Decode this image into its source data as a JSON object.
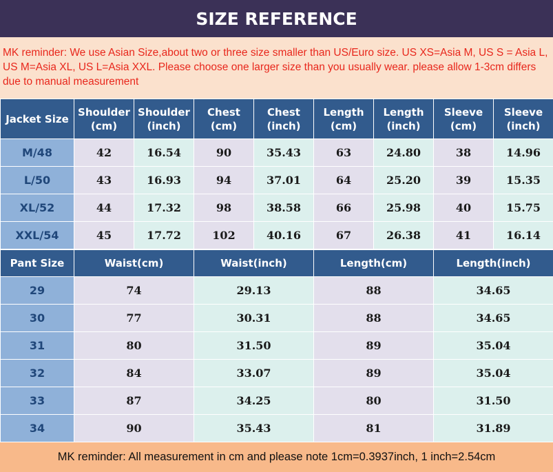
{
  "title": "SIZE REFERENCE",
  "reminder": "MK reminder: We use Asian Size,about two or three size smaller than US/Euro size. US XS=Asia M,  US S = Asia L,  US M=Asia XL,  US L=Asia XXL. Please choose one larger size than you usually wear. please allow 1-3cm differs due to manual measurement",
  "jacket": {
    "headers": [
      "Jacket Size",
      "Shoulder (cm)",
      "Shoulder (inch)",
      "Chest (cm)",
      "Chest (inch)",
      "Length (cm)",
      "Length (inch)",
      "Sleeve (cm)",
      "Sleeve (inch)"
    ],
    "rows": [
      [
        "M/48",
        "42",
        "16.54",
        "90",
        "35.43",
        "63",
        "24.80",
        "38",
        "14.96"
      ],
      [
        "L/50",
        "43",
        "16.93",
        "94",
        "37.01",
        "64",
        "25.20",
        "39",
        "15.35"
      ],
      [
        "XL/52",
        "44",
        "17.32",
        "98",
        "38.58",
        "66",
        "25.98",
        "40",
        "15.75"
      ],
      [
        "XXL/54",
        "45",
        "17.72",
        "102",
        "40.16",
        "67",
        "26.38",
        "41",
        "16.14"
      ]
    ]
  },
  "pant": {
    "headers": [
      "Pant Size",
      "Waist(cm)",
      "Waist(inch)",
      "Length(cm)",
      "Length(inch)"
    ],
    "rows": [
      [
        "29",
        "74",
        "29.13",
        "88",
        "34.65"
      ],
      [
        "30",
        "77",
        "30.31",
        "88",
        "34.65"
      ],
      [
        "31",
        "80",
        "31.50",
        "89",
        "35.04"
      ],
      [
        "32",
        "84",
        "33.07",
        "89",
        "35.04"
      ],
      [
        "33",
        "87",
        "34.25",
        "80",
        "31.50"
      ],
      [
        "34",
        "90",
        "35.43",
        "81",
        "31.89"
      ]
    ]
  },
  "footer": "MK reminder: All measurement in cm and please note 1cm=0.3937inch, 1 inch=2.54cm",
  "colors": {
    "title_bg": "#3b3157",
    "header_bg": "#325b8d",
    "size_col_bg": "#8fb1d9",
    "purple_cell": "#e3dfec",
    "mint_cell": "#dcf0ed",
    "reminder_bg": "#fbe1cd",
    "reminder_text": "#e8271c",
    "footer_bg": "#f8b98a"
  }
}
